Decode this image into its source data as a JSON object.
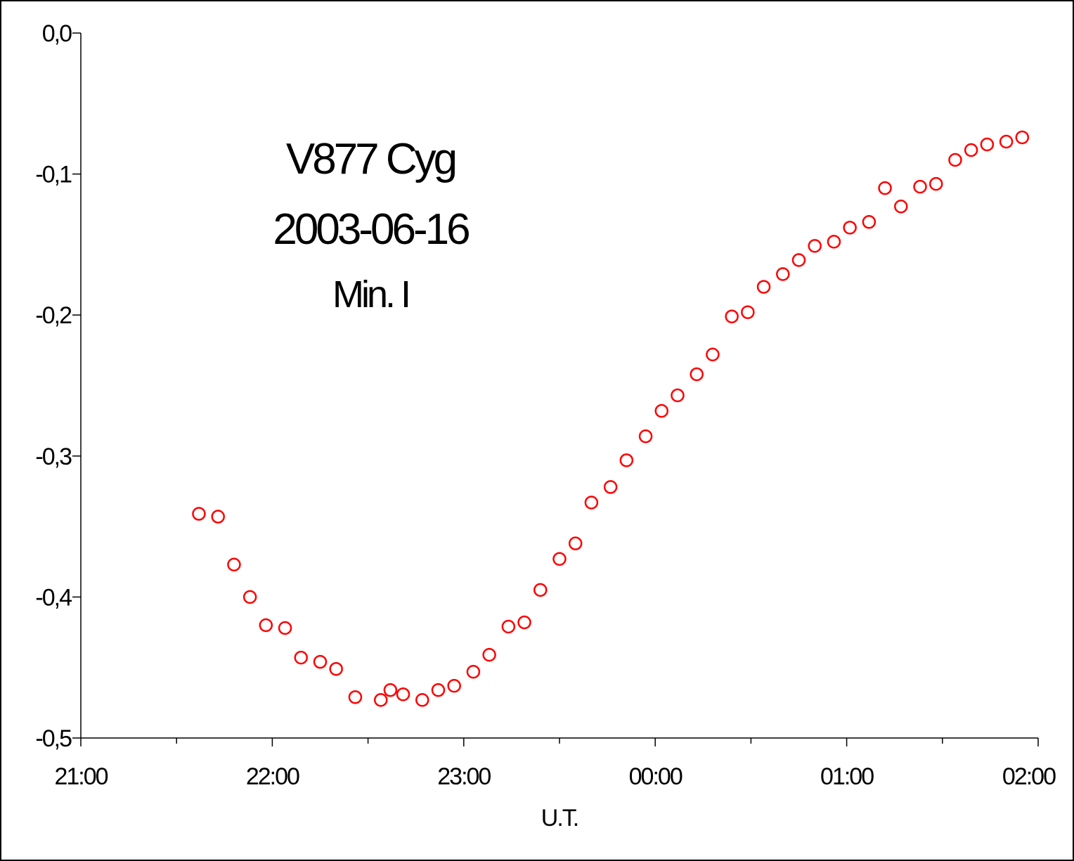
{
  "chart_data": {
    "type": "scatter",
    "annotations": [
      "V877 Cyg",
      "2003-06-16",
      "Min. I"
    ],
    "xlabel": "U.T.",
    "ylabel": "",
    "x_ticks": [
      "21:00",
      "22:00",
      "23:00",
      "00:00",
      "01:00",
      "02:00"
    ],
    "y_ticks": [
      "0,0",
      "-0,1",
      "-0,2",
      "-0,3",
      "-0,4",
      "-0,5"
    ],
    "xlim": [
      "21:00",
      "02:00"
    ],
    "ylim": [
      -0.5,
      0.0
    ],
    "grid": false,
    "legend": "none",
    "marker": "open-circle",
    "marker_color": "#ff0000",
    "series": [
      {
        "points": [
          [
            "21:37",
            -0.341
          ],
          [
            "21:43",
            -0.343
          ],
          [
            "21:48",
            -0.377
          ],
          [
            "21:53",
            -0.4
          ],
          [
            "21:58",
            -0.42
          ],
          [
            "22:04",
            -0.422
          ],
          [
            "22:09",
            -0.443
          ],
          [
            "22:15",
            -0.446
          ],
          [
            "22:20",
            -0.451
          ],
          [
            "22:26",
            -0.471
          ],
          [
            "22:34",
            -0.473
          ],
          [
            "22:37",
            -0.466
          ],
          [
            "22:41",
            -0.469
          ],
          [
            "22:47",
            -0.473
          ],
          [
            "22:52",
            -0.466
          ],
          [
            "22:57",
            -0.463
          ],
          [
            "23:03",
            -0.453
          ],
          [
            "23:08",
            -0.441
          ],
          [
            "23:14",
            -0.421
          ],
          [
            "23:19",
            -0.418
          ],
          [
            "23:24",
            -0.395
          ],
          [
            "23:30",
            -0.373
          ],
          [
            "23:35",
            -0.362
          ],
          [
            "23:40",
            -0.333
          ],
          [
            "23:46",
            -0.322
          ],
          [
            "23:51",
            -0.303
          ],
          [
            "23:57",
            -0.286
          ],
          [
            "00:02",
            -0.268
          ],
          [
            "00:07",
            -0.257
          ],
          [
            "00:13",
            -0.242
          ],
          [
            "00:18",
            -0.228
          ],
          [
            "00:24",
            -0.201
          ],
          [
            "00:29",
            -0.198
          ],
          [
            "00:34",
            -0.18
          ],
          [
            "00:40",
            -0.171
          ],
          [
            "00:45",
            -0.161
          ],
          [
            "00:50",
            -0.151
          ],
          [
            "00:56",
            -0.148
          ],
          [
            "01:01",
            -0.138
          ],
          [
            "01:07",
            -0.134
          ],
          [
            "01:12",
            -0.11
          ],
          [
            "01:17",
            -0.123
          ],
          [
            "01:23",
            -0.109
          ],
          [
            "01:28",
            -0.107
          ],
          [
            "01:34",
            -0.09
          ],
          [
            "01:39",
            -0.083
          ],
          [
            "01:44",
            -0.079
          ],
          [
            "01:50",
            -0.077
          ],
          [
            "01:55",
            -0.074
          ]
        ]
      }
    ]
  }
}
